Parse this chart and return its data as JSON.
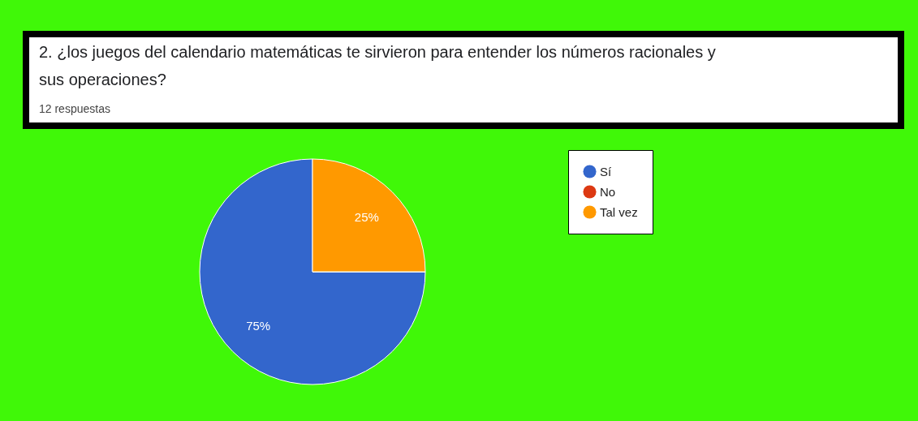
{
  "chart_data": {
    "type": "pie",
    "title": "2. ¿los juegos del calendario matemáticas te sirvieron para entender los números racionales y sus operaciones?",
    "subtitle": "12 respuestas",
    "categories": [
      "Sí",
      "No",
      "Tal vez"
    ],
    "values": [
      75,
      0,
      25
    ],
    "colors": [
      "#3366cc",
      "#dc3912",
      "#ff9900"
    ],
    "value_labels": [
      "75%",
      null,
      "25%"
    ],
    "legend": "right"
  }
}
